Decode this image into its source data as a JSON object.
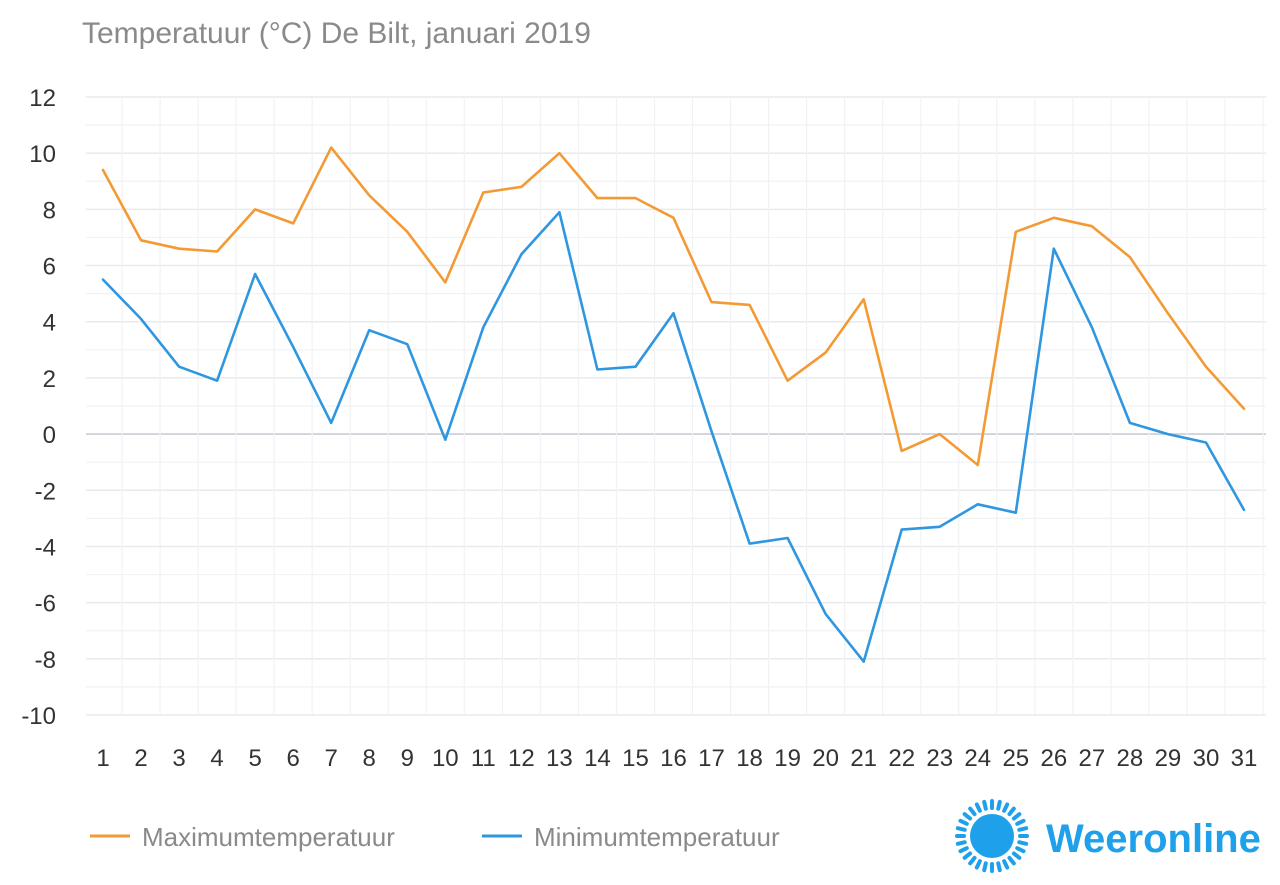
{
  "chart_data": {
    "type": "line",
    "title": "Temperatuur (°C)  De Bilt, januari 2019",
    "xlabel": "",
    "ylabel": "",
    "ylim": [
      -10,
      12
    ],
    "yticks": [
      12,
      10,
      8,
      6,
      4,
      2,
      0,
      -2,
      -4,
      -6,
      -8,
      -10
    ],
    "grid": true,
    "legend_position": "bottom-left",
    "categories": [
      "1",
      "2",
      "3",
      "4",
      "5",
      "6",
      "7",
      "8",
      "9",
      "10",
      "11",
      "12",
      "13",
      "14",
      "15",
      "16",
      "17",
      "18",
      "19",
      "20",
      "21",
      "22",
      "23",
      "24",
      "25",
      "26",
      "27",
      "28",
      "29",
      "30",
      "31"
    ],
    "series": [
      {
        "name": "Maximumtemperatuur",
        "color": "#f39a35",
        "values": [
          9.4,
          6.9,
          6.6,
          6.5,
          8.0,
          7.5,
          10.2,
          8.5,
          7.2,
          5.4,
          8.6,
          8.8,
          10.0,
          8.4,
          8.4,
          7.7,
          4.7,
          4.6,
          1.9,
          2.9,
          4.8,
          -0.6,
          0.0,
          -1.1,
          7.2,
          7.7,
          7.4,
          6.3,
          4.3,
          2.4,
          0.9
        ]
      },
      {
        "name": "Minimumtemperatuur",
        "color": "#2f96e0",
        "values": [
          5.5,
          4.1,
          2.4,
          1.9,
          5.7,
          3.1,
          0.4,
          3.7,
          3.2,
          -0.2,
          3.8,
          6.4,
          7.9,
          2.3,
          2.4,
          4.3,
          0.1,
          -3.9,
          -3.7,
          -6.4,
          -8.1,
          -3.4,
          -3.3,
          -2.5,
          -2.8,
          6.6,
          3.8,
          0.4,
          0.0,
          -0.3,
          -2.7
        ]
      }
    ]
  },
  "brand": {
    "name": "Weeronline",
    "color": "#1ea0ea",
    "icon": "sun-logo-icon"
  }
}
